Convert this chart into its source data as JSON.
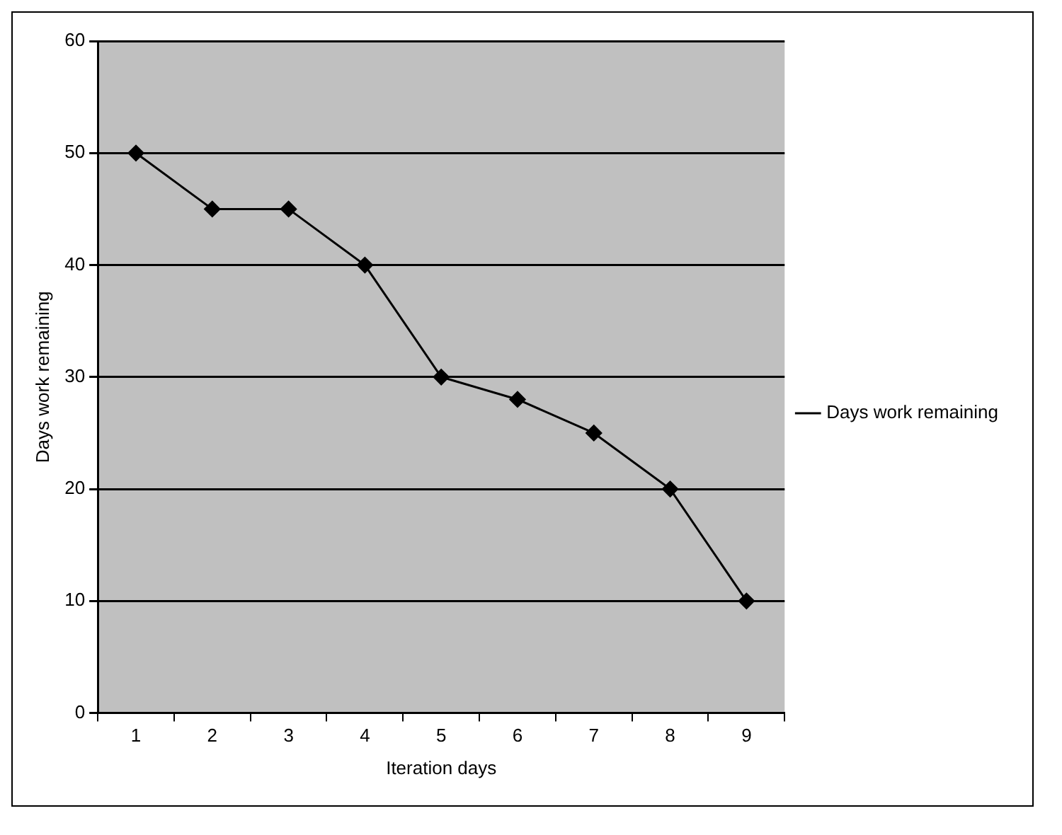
{
  "chart_data": {
    "type": "line",
    "xlabel": "Iteration days",
    "ylabel": "Days work remaining",
    "categories": [
      "1",
      "2",
      "3",
      "4",
      "5",
      "6",
      "7",
      "8",
      "9"
    ],
    "series": [
      {
        "name": "Days work remaining",
        "color": "#000000",
        "values": [
          50,
          45,
          45,
          40,
          30,
          28,
          25,
          20,
          10
        ]
      }
    ],
    "ylim": [
      0,
      60
    ],
    "yticks": [
      0,
      10,
      20,
      30,
      40,
      50,
      60
    ],
    "grid": "y",
    "legend": "right",
    "marker": "diamond",
    "line_style": "solid"
  }
}
